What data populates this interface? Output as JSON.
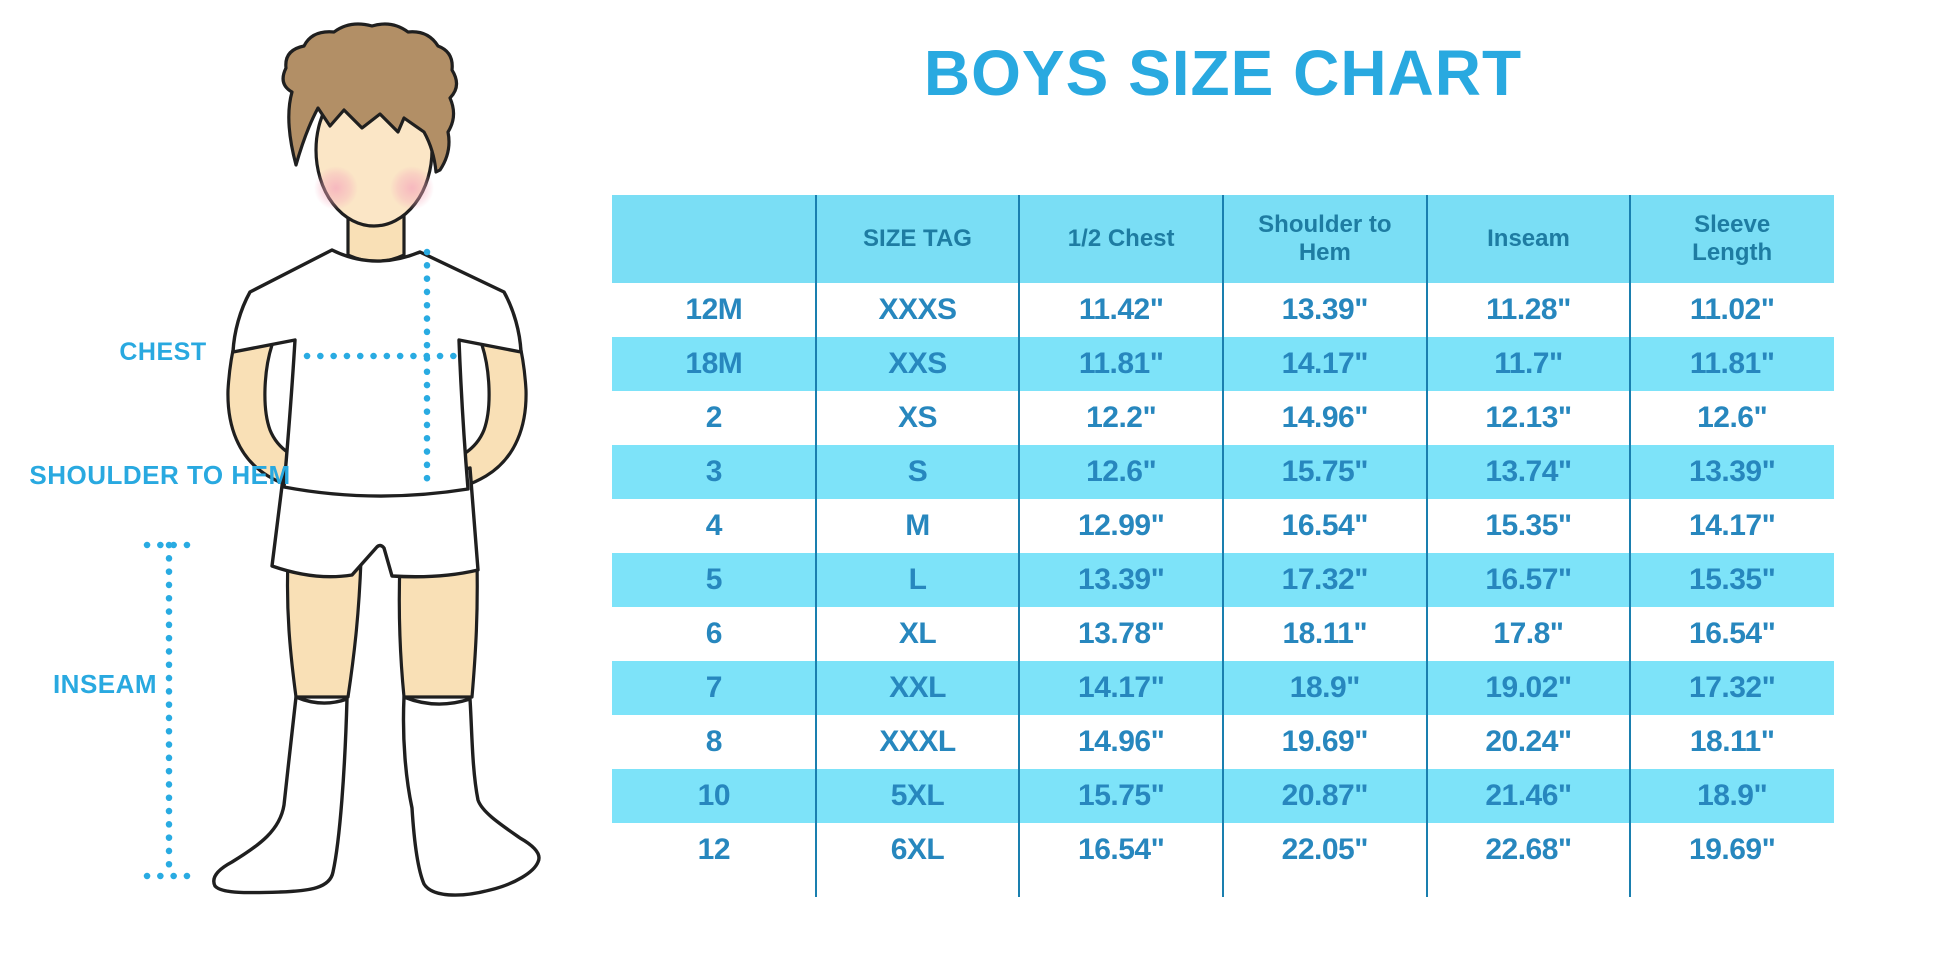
{
  "title": "BOYS SIZE CHART",
  "diagram": {
    "labels": {
      "chest": "CHEST",
      "shoulder_to_hem": "SHOULDER TO HEM",
      "inseam": "INSEAM"
    },
    "figure": "boy-outline-illustration"
  },
  "chart_data": {
    "type": "table",
    "title": "BOYS SIZE CHART",
    "units": "inches",
    "columns": [
      "",
      "SIZE TAG",
      "1/2 Chest",
      "Shoulder to Hem",
      "Inseam",
      "Sleeve Length"
    ],
    "rows": [
      [
        "12M",
        "XXXS",
        "11.42\"",
        "13.39\"",
        "11.28\"",
        "11.02\""
      ],
      [
        "18M",
        "XXS",
        "11.81\"",
        "14.17\"",
        "11.7\"",
        "11.81\""
      ],
      [
        "2",
        "XS",
        "12.2\"",
        "14.96\"",
        "12.13\"",
        "12.6\""
      ],
      [
        "3",
        "S",
        "12.6\"",
        "15.75\"",
        "13.74\"",
        "13.39\""
      ],
      [
        "4",
        "M",
        "12.99\"",
        "16.54\"",
        "15.35\"",
        "14.17\""
      ],
      [
        "5",
        "L",
        "13.39\"",
        "17.32\"",
        "16.57\"",
        "15.35\""
      ],
      [
        "6",
        "XL",
        "13.78\"",
        "18.11\"",
        "17.8\"",
        "16.54\""
      ],
      [
        "7",
        "XXL",
        "14.17\"",
        "18.9\"",
        "19.02\"",
        "17.32\""
      ],
      [
        "8",
        "XXXL",
        "14.96\"",
        "19.69\"",
        "20.24\"",
        "18.11\""
      ],
      [
        "10",
        "5XL",
        "15.75\"",
        "20.87\"",
        "21.46\"",
        "18.9\""
      ],
      [
        "12",
        "6XL",
        "16.54\"",
        "22.05\"",
        "22.68\"",
        "19.69\""
      ]
    ],
    "stripe_pattern": "alternating white and cyan rows"
  },
  "colors": {
    "title_blue": "#29A9E0",
    "label_blue": "#29A9E0",
    "dotted_line": "#29ABE2",
    "header_bg": "#7ADEF5",
    "stripe_bg": "#7DE3F9",
    "header_text": "#1E7CA2",
    "cell_text": "#2787BE",
    "divider": "#1A7FAF",
    "skin": "#F9E0B6",
    "face": "#FBE6C6",
    "blush": "#F5A9BC",
    "hair": "#B28F66",
    "outline": "#1F1F1F"
  }
}
